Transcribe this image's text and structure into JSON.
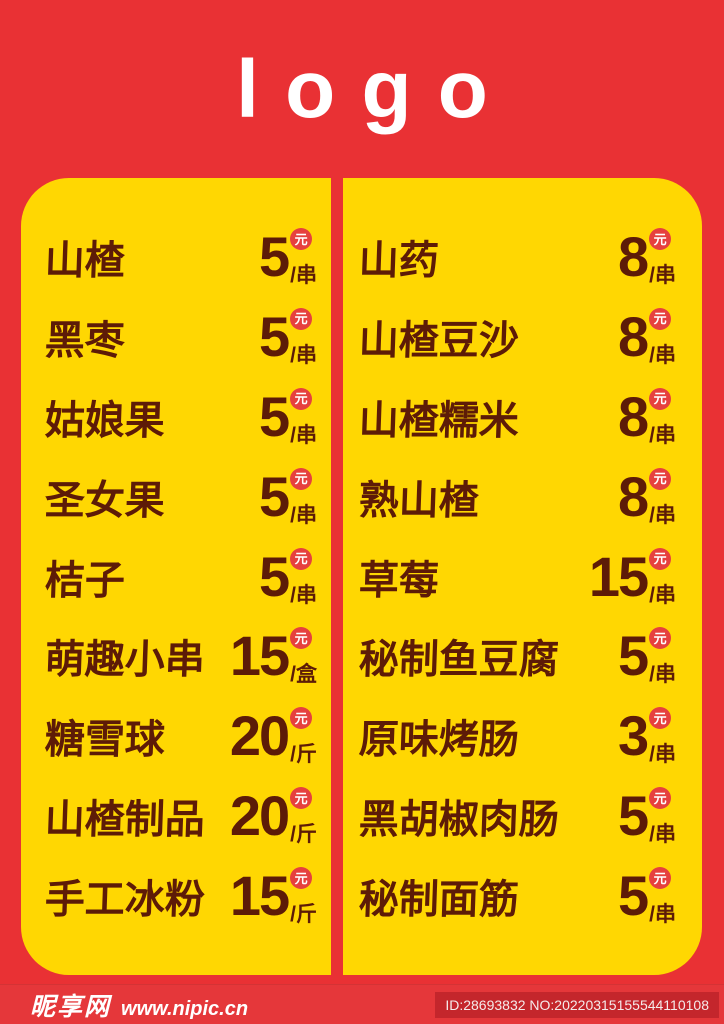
{
  "colors": {
    "background_red": "#E93134",
    "panel_yellow": "#FFD702",
    "text_brown": "#5D1B07",
    "badge_red": "#E6403E",
    "id_box_red": "#C4262C",
    "logo_white": "#FFFFFF"
  },
  "header": {
    "logo_text": "logo"
  },
  "price_badge": {
    "currency_symbol": "元",
    "separator": "/"
  },
  "menu": {
    "columns": [
      {
        "side": "left",
        "items": [
          {
            "name": "山楂",
            "price": "5",
            "unit": "/串"
          },
          {
            "name": "黑枣",
            "price": "5",
            "unit": "/串"
          },
          {
            "name": "姑娘果",
            "price": "5",
            "unit": "/串"
          },
          {
            "name": "圣女果",
            "price": "5",
            "unit": "/串"
          },
          {
            "name": "桔子",
            "price": "5",
            "unit": "/串"
          },
          {
            "name": "萌趣小串",
            "price": "15",
            "unit": "/盒"
          },
          {
            "name": "糖雪球",
            "price": "20",
            "unit": "/斤"
          },
          {
            "name": "山楂制品",
            "price": "20",
            "unit": "/斤"
          },
          {
            "name": "手工冰粉",
            "price": "15",
            "unit": "/斤"
          }
        ]
      },
      {
        "side": "right",
        "items": [
          {
            "name": "山药",
            "price": "8",
            "unit": "/串"
          },
          {
            "name": "山楂豆沙",
            "price": "8",
            "unit": "/串"
          },
          {
            "name": "山楂糯米",
            "price": "8",
            "unit": "/串"
          },
          {
            "name": "熟山楂",
            "price": "8",
            "unit": "/串"
          },
          {
            "name": "草莓",
            "price": "15",
            "unit": "/串"
          },
          {
            "name": "秘制鱼豆腐",
            "price": "5",
            "unit": "/串"
          },
          {
            "name": "原味烤肠",
            "price": "3",
            "unit": "/串"
          },
          {
            "name": "黑胡椒肉肠",
            "price": "5",
            "unit": "/串"
          },
          {
            "name": "秘制面筋",
            "price": "5",
            "unit": "/串"
          }
        ]
      }
    ]
  },
  "footer": {
    "site_name": "昵享网",
    "site_url": "www.nipic.cn",
    "id_text": "ID:28693832 NO:20220315155544110108"
  }
}
